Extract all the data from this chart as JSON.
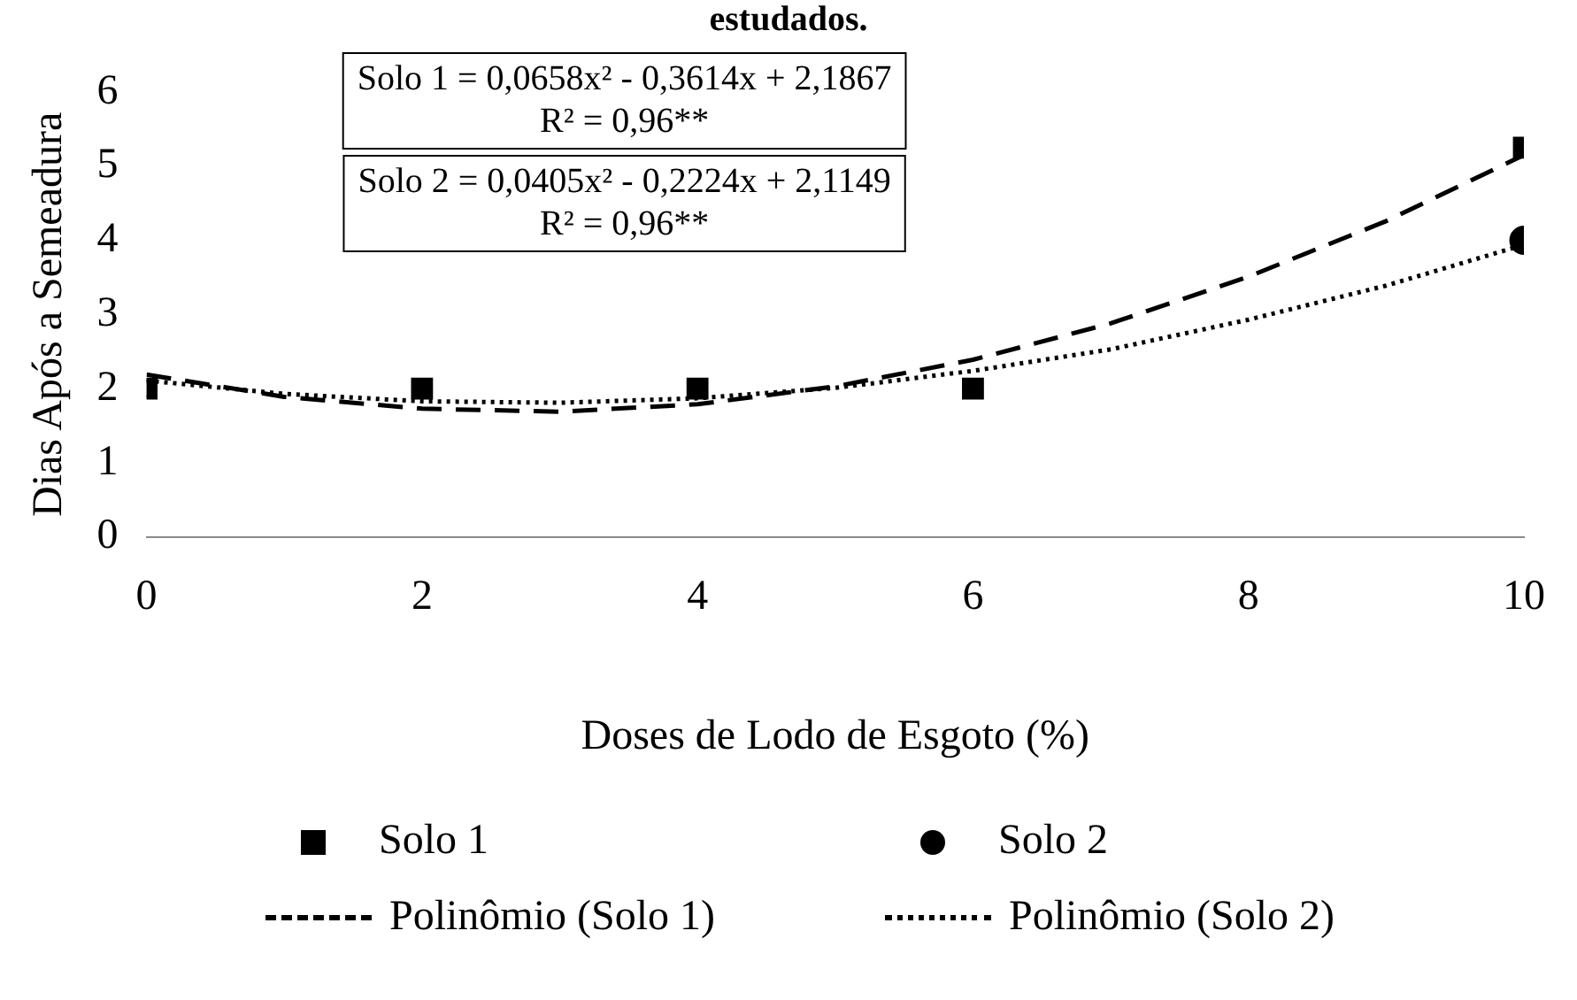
{
  "chart_data": {
    "type": "scatter",
    "title": "estudados.",
    "xlabel": "Doses de Lodo de Esgoto (%)",
    "ylabel": "Dias Após a Semeadura",
    "annotations": [
      "Solo 1 = 0,0658x² - 0,3614x + 2,1867\nR² = 0,96**",
      "Solo 2 = 0,0405x² - 0,2224x + 2,1149\nR² = 0,96**"
    ],
    "xlim": [
      0,
      10
    ],
    "xticks": [
      0,
      2,
      4,
      6,
      8,
      10
    ],
    "ylim": [
      0,
      6
    ],
    "yticks": [
      0,
      1,
      2,
      3,
      4,
      5,
      6
    ],
    "legend": "bottom",
    "series": [
      {
        "name": "Solo 1",
        "type": "scatter",
        "marker": "square",
        "color": "#000000",
        "x": [
          0,
          2,
          4,
          6,
          10
        ],
        "values": [
          2,
          2,
          2,
          2,
          5.25
        ]
      },
      {
        "name": "Solo 2",
        "type": "scatter",
        "marker": "circle",
        "color": "#000000",
        "x": [
          10
        ],
        "values": [
          4
        ]
      },
      {
        "name": "Polinômio (Solo 1)",
        "type": "line",
        "marker": "none",
        "line_style": "dashed",
        "color": "#000000",
        "x": [
          0,
          1,
          2,
          3,
          4,
          5,
          6,
          7,
          8,
          9,
          10
        ],
        "values": [
          2.19,
          1.89,
          1.73,
          1.69,
          1.79,
          2.03,
          2.39,
          2.88,
          3.51,
          4.26,
          5.15
        ]
      },
      {
        "name": "Polinômio (Solo 2)",
        "type": "line",
        "marker": "none",
        "line_style": "dotted",
        "color": "#000000",
        "x": [
          0,
          1,
          2,
          3,
          4,
          5,
          6,
          7,
          8,
          9,
          10
        ],
        "values": [
          2.11,
          1.93,
          1.83,
          1.81,
          1.87,
          2.01,
          2.24,
          2.53,
          2.93,
          3.39,
          3.94
        ]
      }
    ]
  }
}
